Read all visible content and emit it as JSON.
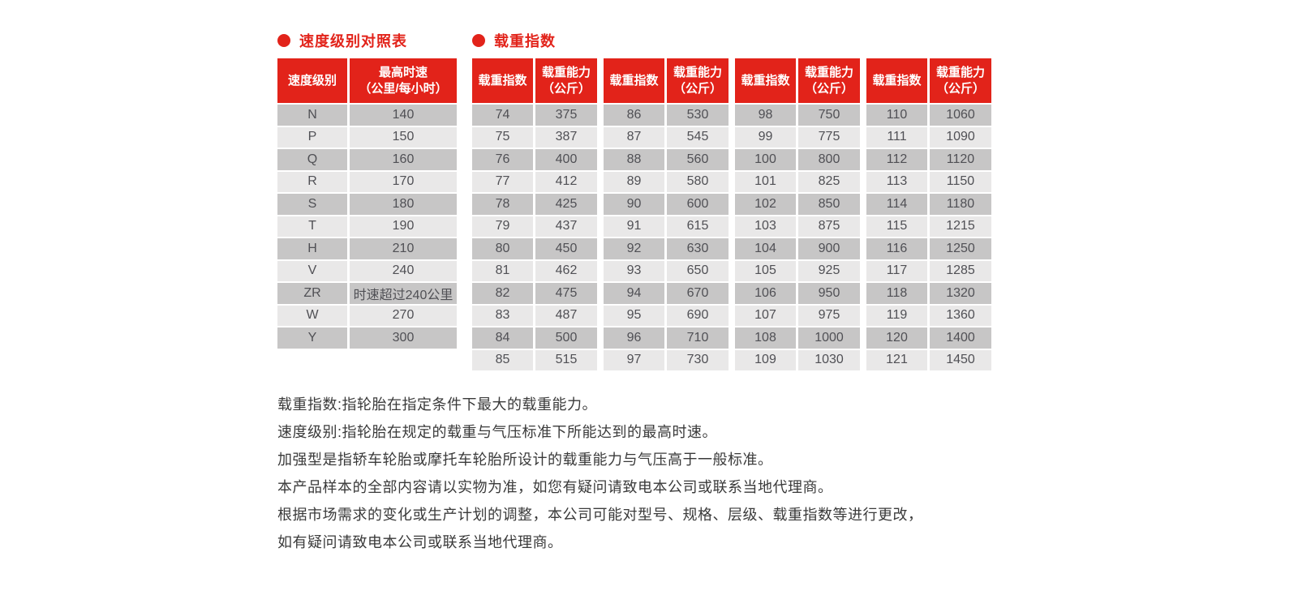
{
  "colors": {
    "accent_red": "#e2231a",
    "row_dark": "#c7c6c6",
    "row_light": "#e9e8e8"
  },
  "speed_table": {
    "title": "速度级别对照表",
    "col1_header": "速度级别",
    "col2_header_line1": "最高时速",
    "col2_header_line2": "（公里/每小时）",
    "rows": [
      [
        "N",
        "140"
      ],
      [
        "P",
        "150"
      ],
      [
        "Q",
        "160"
      ],
      [
        "R",
        "170"
      ],
      [
        "S",
        "180"
      ],
      [
        "T",
        "190"
      ],
      [
        "H",
        "210"
      ],
      [
        "V",
        "240"
      ],
      [
        "ZR",
        "时速超过240公里"
      ],
      [
        "W",
        "270"
      ],
      [
        "Y",
        "300"
      ]
    ]
  },
  "load_table": {
    "title": "载重指数",
    "index_header": "载重指数",
    "capacity_header_line1": "载重能力",
    "capacity_header_line2": "（公斤）",
    "groups": [
      {
        "rows": [
          [
            "74",
            "375"
          ],
          [
            "75",
            "387"
          ],
          [
            "76",
            "400"
          ],
          [
            "77",
            "412"
          ],
          [
            "78",
            "425"
          ],
          [
            "79",
            "437"
          ],
          [
            "80",
            "450"
          ],
          [
            "81",
            "462"
          ],
          [
            "82",
            "475"
          ],
          [
            "83",
            "487"
          ],
          [
            "84",
            "500"
          ],
          [
            "85",
            "515"
          ]
        ]
      },
      {
        "rows": [
          [
            "86",
            "530"
          ],
          [
            "87",
            "545"
          ],
          [
            "88",
            "560"
          ],
          [
            "89",
            "580"
          ],
          [
            "90",
            "600"
          ],
          [
            "91",
            "615"
          ],
          [
            "92",
            "630"
          ],
          [
            "93",
            "650"
          ],
          [
            "94",
            "670"
          ],
          [
            "95",
            "690"
          ],
          [
            "96",
            "710"
          ],
          [
            "97",
            "730"
          ]
        ]
      },
      {
        "rows": [
          [
            "98",
            "750"
          ],
          [
            "99",
            "775"
          ],
          [
            "100",
            "800"
          ],
          [
            "101",
            "825"
          ],
          [
            "102",
            "850"
          ],
          [
            "103",
            "875"
          ],
          [
            "104",
            "900"
          ],
          [
            "105",
            "925"
          ],
          [
            "106",
            "950"
          ],
          [
            "107",
            "975"
          ],
          [
            "108",
            "1000"
          ],
          [
            "109",
            "1030"
          ]
        ]
      },
      {
        "rows": [
          [
            "110",
            "1060"
          ],
          [
            "111",
            "1090"
          ],
          [
            "112",
            "1120"
          ],
          [
            "113",
            "1150"
          ],
          [
            "114",
            "1180"
          ],
          [
            "115",
            "1215"
          ],
          [
            "116",
            "1250"
          ],
          [
            "117",
            "1285"
          ],
          [
            "118",
            "1320"
          ],
          [
            "119",
            "1360"
          ],
          [
            "120",
            "1400"
          ],
          [
            "121",
            "1450"
          ]
        ]
      }
    ]
  },
  "notes": [
    "载重指数:指轮胎在指定条件下最大的载重能力。",
    "速度级别:指轮胎在规定的载重与气压标准下所能达到的最高时速。",
    "加强型是指轿车轮胎或摩托车轮胎所设计的载重能力与气压高于一般标准。",
    "本产品样本的全部内容请以实物为准，如您有疑问请致电本公司或联系当地代理商。",
    "根据市场需求的变化或生产计划的调整，本公司可能对型号、规格、层级、载重指数等进行更改，",
    "如有疑问请致电本公司或联系当地代理商。"
  ]
}
